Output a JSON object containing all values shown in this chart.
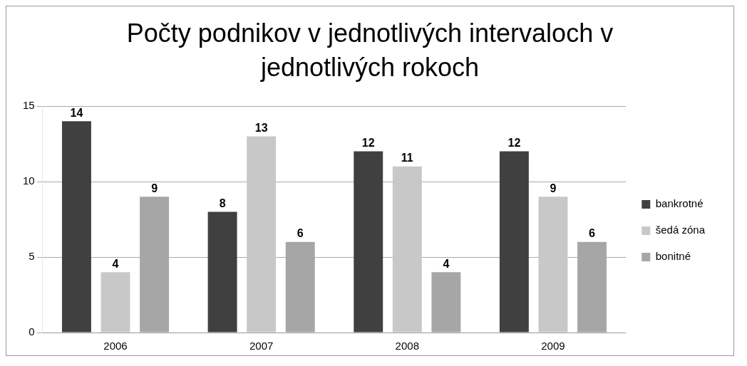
{
  "chart_data": {
    "type": "bar",
    "title": "Počty podnikov v jednotlivých intervaloch v jednotlivých rokoch",
    "categories": [
      "2006",
      "2007",
      "2008",
      "2009"
    ],
    "series": [
      {
        "name": "bankrotné",
        "color": "#404040",
        "values": [
          14,
          8,
          12,
          12
        ]
      },
      {
        "name": "šedá zóna",
        "color": "#c8c8c8",
        "values": [
          4,
          13,
          11,
          9
        ]
      },
      {
        "name": "bonitné",
        "color": "#a6a6a6",
        "values": [
          9,
          6,
          4,
          6
        ]
      }
    ],
    "ylim": [
      0,
      15
    ],
    "yticks": [
      0,
      5,
      10,
      15
    ],
    "grid": "y",
    "legend": "right",
    "data_labels": true
  }
}
